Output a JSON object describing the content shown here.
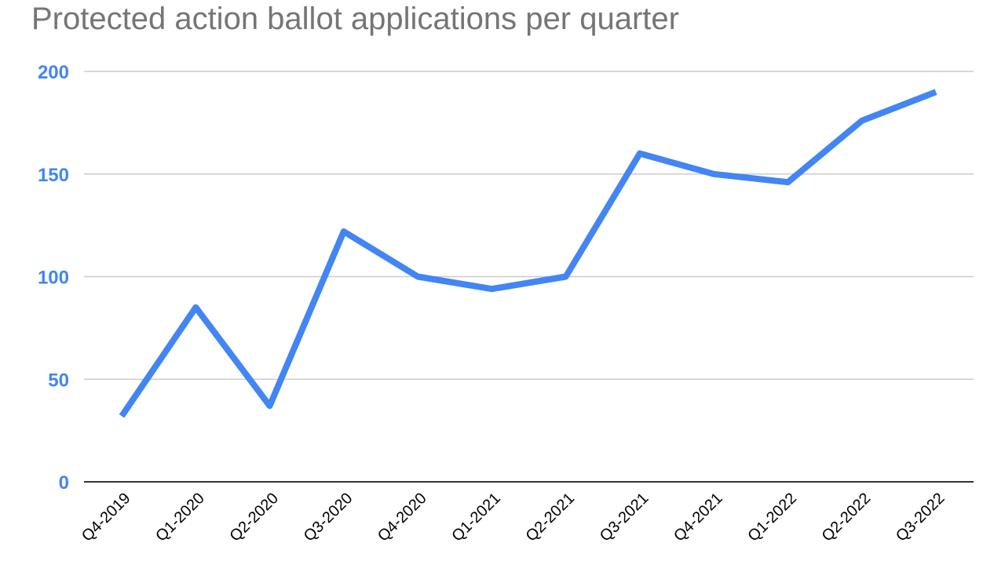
{
  "chart_data": {
    "type": "line",
    "title": "Protected action ballot applications per quarter",
    "xlabel": "",
    "ylabel": "",
    "categories": [
      "Q4-2019",
      "Q1-2020",
      "Q2-2020",
      "Q3-2020",
      "Q4-2020",
      "Q1-2021",
      "Q2-2021",
      "Q3-2021",
      "Q4-2021",
      "Q1-2022",
      "Q2-2022",
      "Q3-2022"
    ],
    "series": [
      {
        "values": [
          32,
          85,
          37,
          122,
          100,
          94,
          100,
          160,
          150,
          146,
          176,
          190
        ]
      }
    ],
    "ylim": [
      0,
      200
    ],
    "yticks": [
      "0",
      "50",
      "100",
      "150",
      "200"
    ],
    "grid": true,
    "legend": "none",
    "colors": {
      "line": "#4285f4",
      "axis_text": "#4285f4",
      "title": "#757575",
      "grid": "#cccccc"
    }
  }
}
